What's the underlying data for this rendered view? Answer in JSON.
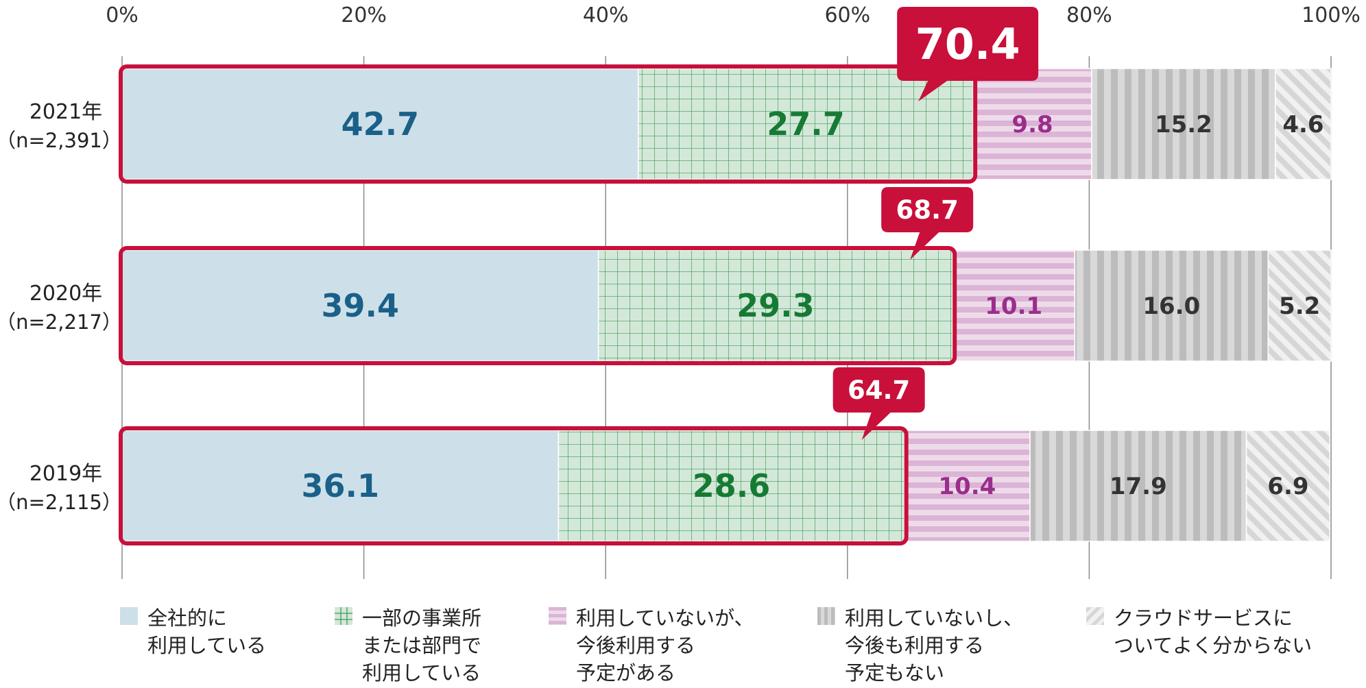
{
  "chart_data": {
    "type": "bar",
    "orientation": "horizontal",
    "stacked": true,
    "xlim": [
      0,
      100
    ],
    "x_ticks": [
      "0%",
      "20%",
      "40%",
      "60%",
      "80%",
      "100%"
    ],
    "grid": true,
    "legend_position": "bottom",
    "categories": [
      {
        "year": "2021年",
        "n": "（n=2,391）",
        "highlight_total": "70.4"
      },
      {
        "year": "2020年",
        "n": "（n=2,217）",
        "highlight_total": "68.7"
      },
      {
        "year": "2019年",
        "n": "（n=2,115）",
        "highlight_total": "64.7"
      }
    ],
    "series": [
      {
        "name": "全社的に\n利用している",
        "values": [
          42.7,
          39.4,
          36.1
        ],
        "labels": [
          "42.7",
          "39.4",
          "36.1"
        ],
        "color": "#cde0e9",
        "text_color": "#1a6089",
        "pattern": "solid"
      },
      {
        "name": "一部の事業所\nまたは部門で\n利用している",
        "values": [
          27.7,
          29.3,
          28.6
        ],
        "labels": [
          "27.7",
          "29.3",
          "28.6"
        ],
        "color": "#d3e8d8",
        "text_color": "#167a34",
        "pattern": "grid"
      },
      {
        "name": "利用していないが、\n今後利用する\n予定がある",
        "values": [
          9.8,
          10.1,
          10.4
        ],
        "labels": [
          "9.8",
          "10.1",
          "10.4"
        ],
        "color": "#eed7e8",
        "text_color": "#9a2e8c",
        "pattern": "hstripes"
      },
      {
        "name": "利用していないし、\n今後も利用する\n予定もない",
        "values": [
          15.2,
          16.0,
          17.9
        ],
        "labels": [
          "15.2",
          "16.0",
          "17.9"
        ],
        "color": "#c7c7c7",
        "text_color": "#333333",
        "pattern": "vstripes"
      },
      {
        "name": "クラウドサービスに\nついてよく分からない",
        "values": [
          4.6,
          5.2,
          6.9
        ],
        "labels": [
          "4.6",
          "5.2",
          "6.9"
        ],
        "color": "#e6e6e6",
        "text_color": "#333333",
        "pattern": "diagonal"
      }
    ],
    "highlight_color": "#c8103a"
  }
}
